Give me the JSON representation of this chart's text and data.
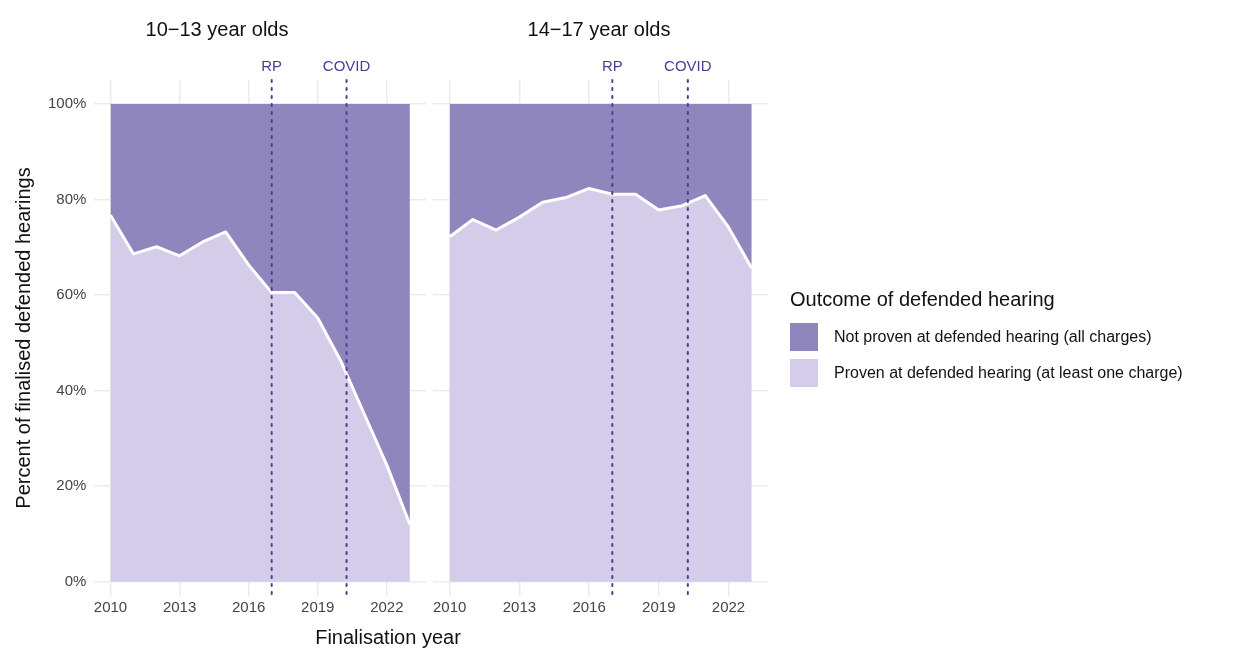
{
  "chart_data": [
    {
      "type": "area",
      "title": "10−13 year olds",
      "xlabel": "Finalisation year",
      "ylabel": "Percent of finalised defended hearings",
      "stacked": true,
      "grid": true,
      "legend": false,
      "x": [
        2010,
        2011,
        2012,
        2013,
        2014,
        2015,
        2016,
        2017,
        2018,
        2019,
        2020,
        2021,
        2022,
        2023
      ],
      "series": [
        {
          "color": "#d5cce9",
          "values": [
            76.7,
            68.6,
            70.1,
            68.2,
            71.1,
            73.2,
            66.3,
            60.5,
            60.5,
            55.2,
            46.2,
            35.3,
            24.4,
            12.0
          ]
        },
        {
          "color": "#8e86bd",
          "values": [
            23.3,
            31.4,
            29.9,
            31.8,
            28.9,
            26.8,
            33.7,
            39.5,
            39.5,
            44.8,
            53.8,
            64.7,
            75.6,
            88.0
          ]
        }
      ],
      "xlim": [
        2009.3,
        2023.7
      ],
      "xticks": [
        2010,
        2013,
        2016,
        2019,
        2022
      ],
      "ylim": [
        -3,
        105
      ],
      "yticks": [
        {
          "value": 0,
          "label": "0%"
        },
        {
          "value": 20,
          "label": "20%"
        },
        {
          "value": 40,
          "label": "40%"
        },
        {
          "value": 60,
          "label": "60%"
        },
        {
          "value": 80,
          "label": "80%"
        },
        {
          "value": 100,
          "label": "100%"
        }
      ],
      "ref_lines": [
        {
          "axis": "x",
          "value": 2017,
          "label": "RP",
          "color": "#4b3c96",
          "line_style": "dotted"
        },
        {
          "axis": "x",
          "value": 2020.25,
          "label": "COVID",
          "color": "#4b3c96",
          "line_style": "dotted"
        }
      ]
    },
    {
      "type": "area",
      "title": "14−17 year olds",
      "stacked": true,
      "grid": true,
      "legend": "right",
      "legend_title": "Outcome of defended hearing",
      "tick_labels": "x",
      "x": [
        2010,
        2011,
        2012,
        2013,
        2014,
        2015,
        2016,
        2017,
        2018,
        2019,
        2020,
        2021,
        2022,
        2023
      ],
      "series": [
        {
          "name": "Proven at defended hearing (at least one charge)",
          "color": "#d5cce9",
          "values": [
            72.2,
            75.8,
            73.6,
            76.3,
            79.4,
            80.4,
            82.3,
            81.1,
            81.1,
            77.8,
            78.7,
            80.8,
            74.2,
            65.6
          ]
        },
        {
          "name": "Not proven at defended hearing (all charges)",
          "color": "#8e86bd",
          "values": [
            27.8,
            24.2,
            26.4,
            23.7,
            20.6,
            19.6,
            17.7,
            18.9,
            18.9,
            22.2,
            21.3,
            19.2,
            25.8,
            34.4
          ]
        }
      ],
      "xlim": [
        2009.3,
        2023.7
      ],
      "xticks": [
        2010,
        2013,
        2016,
        2019,
        2022
      ],
      "ylim": [
        -3,
        105
      ],
      "yticks": [
        {
          "value": 0,
          "label": null
        },
        {
          "value": 20,
          "label": null
        },
        {
          "value": 40,
          "label": null
        },
        {
          "value": 60,
          "label": null
        },
        {
          "value": 80,
          "label": null
        },
        {
          "value": 100,
          "label": null
        }
      ],
      "ref_lines": [
        {
          "axis": "x",
          "value": 2017,
          "label": "RP",
          "color": "#4b3c96",
          "line_style": "dotted"
        },
        {
          "axis": "x",
          "value": 2020.25,
          "label": "COVID",
          "color": "#4b3c96",
          "line_style": "dotted"
        }
      ]
    }
  ]
}
